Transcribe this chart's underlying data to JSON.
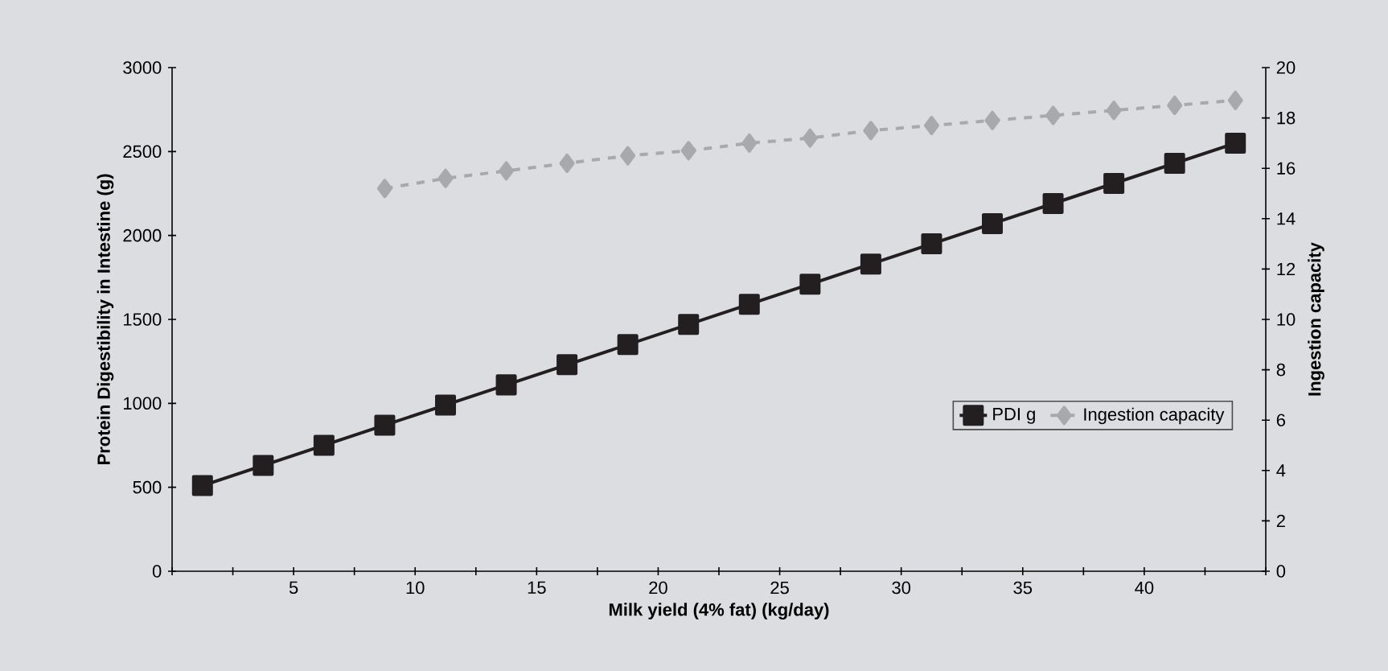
{
  "chart_data": {
    "type": "line",
    "xlabel": "Milk yield (4% fat) (kg/day)",
    "ylabel": "Protein Digestibility in Intestine (g)",
    "y2label": "Ingestion capacity",
    "xlim": [
      0,
      45
    ],
    "xticks": [
      {
        "value": 0,
        "label": null
      },
      {
        "value": 2.5,
        "label": null
      },
      5,
      {
        "value": 7.5,
        "label": null
      },
      10,
      {
        "value": 12.5,
        "label": null
      },
      15,
      {
        "value": 17.5,
        "label": null
      },
      20,
      {
        "value": 22.5,
        "label": null
      },
      25,
      {
        "value": 27.5,
        "label": null
      },
      30,
      {
        "value": 32.5,
        "label": null
      },
      35,
      {
        "value": 37.5,
        "label": null
      },
      40,
      {
        "value": 42.5,
        "label": null
      },
      {
        "value": 45,
        "label": null
      }
    ],
    "ylim": [
      0,
      3000
    ],
    "yticks": [
      0,
      500,
      1000,
      1500,
      2000,
      2500,
      3000
    ],
    "y2lim": [
      0,
      20
    ],
    "y2ticks": [
      0,
      2,
      4,
      6,
      8,
      10,
      12,
      14,
      16,
      18,
      20
    ],
    "grid": false,
    "legend": "right",
    "series": [
      {
        "name": "PDI g",
        "color": "#231f20",
        "marker": "square",
        "line_style": "solid",
        "x": [
          1.25,
          3.75,
          6.25,
          8.75,
          11.25,
          13.75,
          16.25,
          18.75,
          21.25,
          23.75,
          26.25,
          28.75,
          31.25,
          33.75,
          36.25,
          38.75,
          41.25,
          43.75
        ],
        "values": [
          510,
          630,
          750,
          870,
          990,
          1110,
          1230,
          1350,
          1470,
          1590,
          1710,
          1830,
          1950,
          2070,
          2190,
          2310,
          2430,
          2550
        ]
      },
      {
        "name": "Ingestion capacity",
        "color": "#a7a9ac",
        "marker": "diamond",
        "line_style": "dashed",
        "axis": "y2",
        "x": [
          8.75,
          11.25,
          13.75,
          16.25,
          18.75,
          21.25,
          23.75,
          26.25,
          28.75,
          31.25,
          33.75,
          36.25,
          38.75,
          41.25,
          43.75
        ],
        "values": [
          15.2,
          15.6,
          15.9,
          16.2,
          16.5,
          16.7,
          17.0,
          17.2,
          17.5,
          17.7,
          17.9,
          18.1,
          18.3,
          18.5,
          18.7
        ]
      }
    ]
  }
}
